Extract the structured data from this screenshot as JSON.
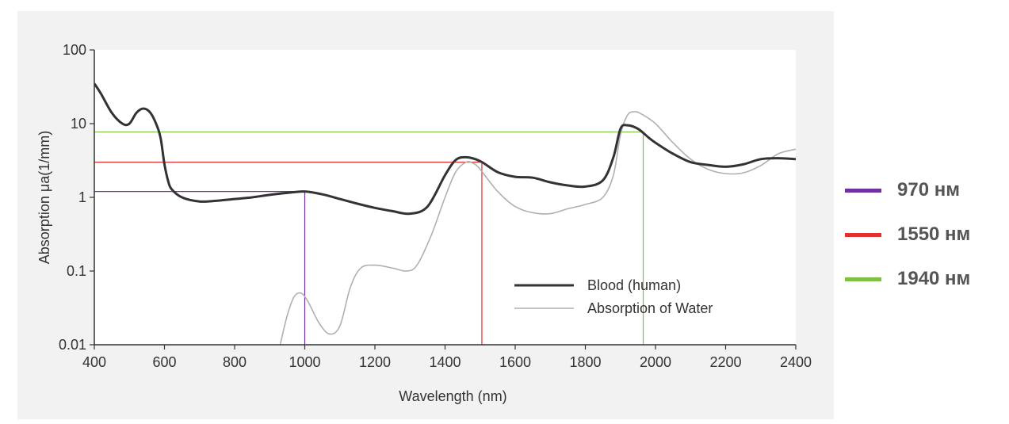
{
  "chart_data": {
    "type": "line",
    "xlabel": "Wavelength (nm)",
    "ylabel": "Absorption μa(1/mm)",
    "xlim": [
      400,
      2400
    ],
    "ylim": [
      0.01,
      100
    ],
    "yscale": "log",
    "grid": false,
    "x_ticks": [
      "400",
      "600",
      "800",
      "1000",
      "1200",
      "1400",
      "1600",
      "1800",
      "2000",
      "2200",
      "2400"
    ],
    "y_ticks": [
      "0.01",
      "0.1",
      "1",
      "10",
      "100"
    ],
    "legend_position": "inside-lower-right",
    "series": [
      {
        "name": "Blood (human)",
        "color": "#333333",
        "x": [
          400,
          420,
          450,
          480,
          500,
          520,
          540,
          560,
          580,
          590,
          600,
          610,
          620,
          650,
          700,
          750,
          800,
          850,
          900,
          950,
          1000,
          1050,
          1100,
          1150,
          1200,
          1250,
          1300,
          1350,
          1400,
          1430,
          1460,
          1500,
          1550,
          1600,
          1650,
          1700,
          1750,
          1800,
          1850,
          1880,
          1900,
          1920,
          1950,
          1980,
          2000,
          2050,
          2100,
          2150,
          2200,
          2250,
          2300,
          2350,
          2400
        ],
        "y": [
          35,
          25,
          14,
          10,
          10,
          14,
          16,
          14,
          9,
          6,
          2.8,
          1.7,
          1.3,
          1.0,
          0.88,
          0.9,
          0.95,
          1.0,
          1.08,
          1.15,
          1.2,
          1.1,
          0.95,
          0.82,
          0.72,
          0.65,
          0.6,
          0.75,
          2.0,
          3.2,
          3.5,
          3.1,
          2.2,
          1.9,
          1.85,
          1.6,
          1.45,
          1.4,
          1.7,
          3.5,
          8.5,
          9.5,
          8.5,
          6.5,
          5.5,
          3.9,
          3.0,
          2.75,
          2.6,
          2.8,
          3.3,
          3.4,
          3.3
        ]
      },
      {
        "name": "Absorption of Water",
        "color": "#b0b0b0",
        "x": [
          930,
          950,
          970,
          990,
          1010,
          1040,
          1070,
          1100,
          1130,
          1160,
          1200,
          1250,
          1290,
          1320,
          1360,
          1400,
          1430,
          1460,
          1480,
          1500,
          1550,
          1600,
          1650,
          1700,
          1750,
          1800,
          1850,
          1880,
          1900,
          1920,
          1940,
          1960,
          2000,
          2050,
          2100,
          2150,
          2200,
          2250,
          2300,
          2350,
          2400
        ],
        "y": [
          0.01,
          0.025,
          0.045,
          0.05,
          0.038,
          0.02,
          0.014,
          0.018,
          0.06,
          0.11,
          0.12,
          0.11,
          0.1,
          0.12,
          0.3,
          1.0,
          2.2,
          3.0,
          2.9,
          2.4,
          1.2,
          0.75,
          0.62,
          0.6,
          0.7,
          0.8,
          1.0,
          2.0,
          7.0,
          13.0,
          14.5,
          13.5,
          10.0,
          5.5,
          3.3,
          2.4,
          2.1,
          2.15,
          2.7,
          3.9,
          4.5
        ]
      }
    ],
    "reference_lines": [
      {
        "label": "970 нм",
        "color": "#7030a0",
        "x": 1000,
        "y": 1.2
      },
      {
        "label": "1550 нм",
        "color": "#e03030",
        "x": 1505,
        "y": 3.0
      },
      {
        "label": "1940 нм",
        "color": "#7dc142",
        "x": 1965,
        "y": 7.7
      }
    ]
  }
}
